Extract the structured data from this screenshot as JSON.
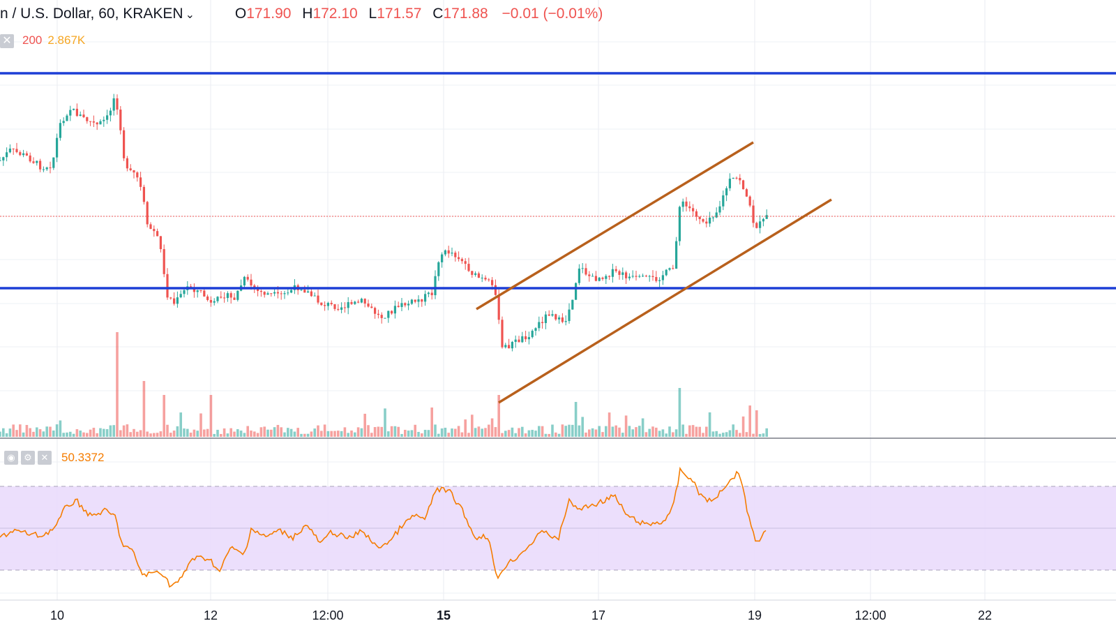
{
  "header": {
    "symbol": "n / U.S. Dollar, 60, KRAKEN",
    "chevron": "chevron-down-icon",
    "open_label": "O",
    "open": "171.90",
    "high_label": "H",
    "high": "172.10",
    "low_label": "L",
    "low": "171.57",
    "close_label": "C",
    "close": "171.88",
    "change": "−0.01 (−0.01%)"
  },
  "volume_legend": {
    "close_icon": "close-icon",
    "length": "200",
    "value": "2.867K"
  },
  "rsi_legend": {
    "eye_icon": "eye-icon",
    "gear_icon": "gear-icon",
    "close_icon": "close-icon",
    "value": "50.3372"
  },
  "colors": {
    "up": "#26a69a",
    "down": "#ef5350",
    "support_resistance": "#1d3fd6",
    "channel": "#b8601c",
    "rsi_line": "#f57c00",
    "rsi_band": "#eadcfc"
  },
  "chart_data": [
    {
      "type": "candlestick",
      "x_tick_labels": [
        "10",
        "12",
        "12:00",
        "15",
        "17",
        "19",
        "12:00",
        "22"
      ],
      "bold_ticks": [
        "15"
      ],
      "x_ticks": [
        0.05,
        0.18,
        0.29,
        0.4,
        0.535,
        0.675,
        0.78,
        0.885
      ],
      "bars": 231,
      "horizontal_lines": [
        {
          "name": "resistance",
          "value": 0.0
        },
        {
          "name": "support",
          "value": 0.0
        }
      ],
      "last_price_line": 171.88,
      "channel": {
        "upper": [
          [
            0.427,
            0.0
          ],
          [
            0.675,
            0.0
          ]
        ],
        "lower": [
          [
            0.447,
            0.0
          ],
          [
            0.748,
            0.0
          ]
        ]
      }
    },
    {
      "type": "line",
      "series": [
        {
          "values": []
        }
      ],
      "value": 50.3372,
      "band": [
        30,
        70
      ],
      "ylim": [
        10,
        90
      ]
    }
  ]
}
